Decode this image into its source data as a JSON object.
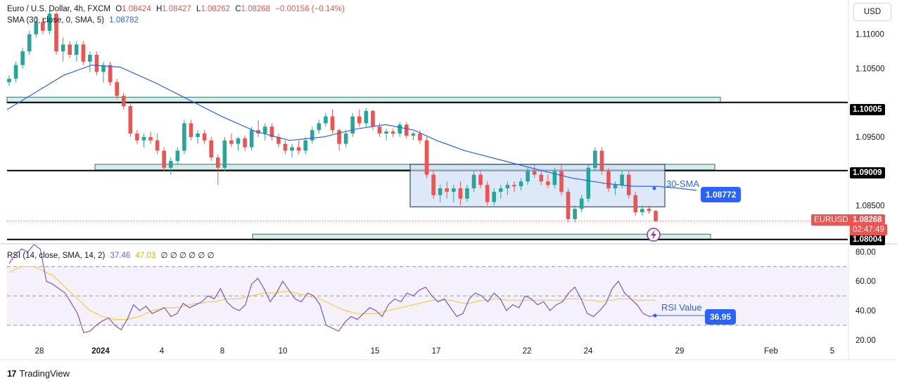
{
  "legend": {
    "symbol": "Euro / U.S. Dollar, 4h, FXCM",
    "o_label": "O",
    "o": "1.08424",
    "h_label": "H",
    "h": "1.08427",
    "l_label": "L",
    "l": "1.08262",
    "c_label": "C",
    "c": "1.08268",
    "change": "−0.00156 (−0.14%)",
    "sma_label": "SMA (30, close, 0, SMA, 5)",
    "sma_value": "1.08782",
    "rsi_label": "RSI (14, close, SMA, 14, 2)",
    "rsi_value": "37.46",
    "rsi_sma_value": "47.03",
    "rsi_extra": "∅ ∅ ∅ ∅ ∅ ∅"
  },
  "currency_button": "USD",
  "branding": "TradingView",
  "annotations": {
    "sma_text": "30-SMA",
    "sma_callout": "1.08772",
    "rsi_text": "RSI Value",
    "rsi_callout": "36.95"
  },
  "price_axis": {
    "ticks": [
      "1.11000",
      "1.10500",
      "1.09500",
      "1.08500"
    ],
    "badges": [
      {
        "label": "1.10005",
        "color": "#000000"
      },
      {
        "label": "1.09009",
        "color": "#000000"
      },
      {
        "label": "1.08004",
        "color": "#000000"
      }
    ],
    "last_price_symbol": "EURUSD",
    "last_price": "1.08268",
    "countdown": "02:47:49",
    "last_color": "#ef5350"
  },
  "rsi_axis": {
    "ticks": [
      "80.00",
      "60.00",
      "40.00",
      "20.00"
    ]
  },
  "time_axis": [
    "28",
    "2024",
    "4",
    "8",
    "10",
    "15",
    "17",
    "22",
    "24",
    "29",
    "Feb",
    "5"
  ],
  "colors": {
    "up": "#26a69a",
    "down": "#ef5350",
    "sma": "#2962ff",
    "rsi": "#7e57c2",
    "rsi_sma": "#f4d03f",
    "zone_fill": "#cfe0f7",
    "level_line": "#000000"
  },
  "chart_data": [
    {
      "type": "candlestick",
      "title": "Euro / U.S. Dollar, 4h, FXCM",
      "xlabel": "",
      "ylabel": "",
      "x_range": [
        "Dec 27",
        "Feb 5"
      ],
      "ylim": [
        1.08,
        1.114
      ],
      "horizontal_levels": [
        1.10005,
        1.09009,
        1.08004
      ],
      "support_resistance_zones": [
        {
          "from": 1.0997,
          "to": 1.1004
        },
        {
          "from": 1.0898,
          "to": 1.0906
        },
        {
          "from": 1.0797,
          "to": 1.0804
        }
      ],
      "consolidation_box": {
        "low": 1.0848,
        "high": 1.091
      },
      "series": [
        {
          "name": "EURUSD",
          "ohlc": [
            [
              1.103,
              1.104,
              1.1025,
              1.1035
            ],
            [
              1.1035,
              1.106,
              1.103,
              1.1055
            ],
            [
              1.1055,
              1.108,
              1.105,
              1.1075
            ],
            [
              1.1075,
              1.1105,
              1.107,
              1.11
            ],
            [
              1.11,
              1.1125,
              1.1095,
              1.1118
            ],
            [
              1.1118,
              1.1125,
              1.11,
              1.1105
            ],
            [
              1.1105,
              1.1135,
              1.11,
              1.113
            ],
            [
              1.113,
              1.1132,
              1.107,
              1.1075
            ],
            [
              1.1075,
              1.1095,
              1.106,
              1.1085
            ],
            [
              1.1085,
              1.109,
              1.1065,
              1.107
            ],
            [
              1.107,
              1.109,
              1.106,
              1.1085
            ],
            [
              1.1085,
              1.109,
              1.1055,
              1.106
            ],
            [
              1.106,
              1.1075,
              1.1045,
              1.107
            ],
            [
              1.107,
              1.1075,
              1.104,
              1.1045
            ],
            [
              1.1045,
              1.106,
              1.103,
              1.1055
            ],
            [
              1.1055,
              1.106,
              1.1025,
              1.103
            ],
            [
              1.103,
              1.1035,
              1.1005,
              1.101
            ],
            [
              1.101,
              1.1015,
              1.099,
              1.0995
            ],
            [
              1.0995,
              1.1,
              1.095,
              1.0955
            ],
            [
              1.0955,
              1.096,
              1.094,
              1.0945
            ],
            [
              1.0945,
              1.0955,
              1.0935,
              1.095
            ],
            [
              1.095,
              1.0958,
              1.094,
              1.0945
            ],
            [
              1.0945,
              1.0955,
              1.0925,
              1.093
            ],
            [
              1.093,
              1.0935,
              1.09,
              1.0905
            ],
            [
              1.0905,
              1.092,
              1.0895,
              1.0915
            ],
            [
              1.0915,
              1.0935,
              1.091,
              1.093
            ],
            [
              1.093,
              1.0975,
              1.0925,
              1.097
            ],
            [
              1.097,
              1.0975,
              1.0945,
              1.095
            ],
            [
              1.095,
              1.096,
              1.094,
              1.0955
            ],
            [
              1.0955,
              1.096,
              1.094,
              1.0945
            ],
            [
              1.0945,
              1.095,
              1.0915,
              1.092
            ],
            [
              1.092,
              1.0925,
              1.088,
              1.0905
            ],
            [
              1.0905,
              1.095,
              1.09,
              1.0945
            ],
            [
              1.0945,
              1.0955,
              1.0935,
              1.094
            ],
            [
              1.094,
              1.095,
              1.093,
              1.0948
            ],
            [
              1.0948,
              1.0952,
              1.093,
              1.0935
            ],
            [
              1.0935,
              1.0965,
              1.093,
              1.096
            ],
            [
              1.096,
              1.0975,
              1.095,
              1.0955
            ],
            [
              1.0955,
              1.097,
              1.0945,
              1.0965
            ],
            [
              1.0965,
              1.097,
              1.0945,
              1.095
            ],
            [
              1.095,
              1.0955,
              1.0935,
              1.094
            ],
            [
              1.094,
              1.0945,
              1.0925,
              1.093
            ],
            [
              1.093,
              1.094,
              1.092,
              1.0935
            ],
            [
              1.0935,
              1.0945,
              1.0925,
              1.093
            ],
            [
              1.093,
              1.095,
              1.0925,
              1.0945
            ],
            [
              1.0945,
              1.0965,
              1.094,
              1.096
            ],
            [
              1.096,
              1.0975,
              1.0955,
              1.097
            ],
            [
              1.097,
              1.0985,
              1.0965,
              1.098
            ],
            [
              1.098,
              1.099,
              1.0955,
              1.096
            ],
            [
              1.096,
              1.0962,
              1.093,
              1.094
            ],
            [
              1.094,
              1.096,
              1.0935,
              1.0955
            ],
            [
              1.0955,
              1.0985,
              1.095,
              1.098
            ],
            [
              1.098,
              1.099,
              1.0965,
              1.097
            ],
            [
              1.097,
              1.0992,
              1.0965,
              1.0988
            ],
            [
              1.0988,
              1.099,
              1.096,
              1.0965
            ],
            [
              1.0965,
              1.097,
              1.095,
              1.0955
            ],
            [
              1.0955,
              1.0962,
              1.0945,
              1.0958
            ],
            [
              1.0958,
              1.0962,
              1.095,
              1.0955
            ],
            [
              1.0955,
              1.0972,
              1.095,
              1.0968
            ],
            [
              1.0968,
              1.0972,
              1.0948,
              1.0952
            ],
            [
              1.0952,
              1.0958,
              1.0945,
              1.0955
            ],
            [
              1.0955,
              1.096,
              1.094,
              1.0945
            ],
            [
              1.0945,
              1.095,
              1.089,
              1.0895
            ],
            [
              1.0895,
              1.09,
              1.086,
              1.0865
            ],
            [
              1.0865,
              1.088,
              1.0855,
              1.0875
            ],
            [
              1.0875,
              1.0885,
              1.086,
              1.087
            ],
            [
              1.087,
              1.088,
              1.0855,
              1.0875
            ],
            [
              1.0875,
              1.0885,
              1.085,
              1.086
            ],
            [
              1.086,
              1.088,
              1.0855,
              1.0875
            ],
            [
              1.0875,
              1.09,
              1.087,
              1.0895
            ],
            [
              1.0895,
              1.09,
              1.0875,
              1.088
            ],
            [
              1.088,
              1.0885,
              1.085,
              1.0855
            ],
            [
              1.0855,
              1.0875,
              1.085,
              1.087
            ],
            [
              1.087,
              1.088,
              1.086,
              1.0875
            ],
            [
              1.0875,
              1.0885,
              1.0865,
              1.088
            ],
            [
              1.088,
              1.0885,
              1.087,
              1.0878
            ],
            [
              1.0878,
              1.089,
              1.0872,
              1.0885
            ],
            [
              1.0885,
              1.0905,
              1.088,
              1.09
            ],
            [
              1.09,
              1.091,
              1.089,
              1.0895
            ],
            [
              1.0895,
              1.09,
              1.088,
              1.0885
            ],
            [
              1.0885,
              1.0895,
              1.0875,
              1.088
            ],
            [
              1.088,
              1.0905,
              1.0875,
              1.09
            ],
            [
              1.09,
              1.091,
              1.0865,
              1.087
            ],
            [
              1.087,
              1.0875,
              1.0825,
              1.083
            ],
            [
              1.083,
              1.085,
              1.0825,
              1.0845
            ],
            [
              1.0845,
              1.0865,
              1.084,
              1.086
            ],
            [
              1.086,
              1.091,
              1.0855,
              1.0905
            ],
            [
              1.0905,
              1.0935,
              1.09,
              1.093
            ],
            [
              1.093,
              1.0935,
              1.0895,
              1.09
            ],
            [
              1.09,
              1.0905,
              1.087,
              1.0875
            ],
            [
              1.0875,
              1.0885,
              1.0865,
              1.088
            ],
            [
              1.088,
              1.09,
              1.0875,
              1.0895
            ],
            [
              1.0895,
              1.09,
              1.086,
              1.0865
            ],
            [
              1.0865,
              1.087,
              1.0835,
              1.084
            ],
            [
              1.084,
              1.085,
              1.0835,
              1.0845
            ],
            [
              1.0845,
              1.085,
              1.0838,
              1.0842
            ],
            [
              1.0842,
              1.0843,
              1.0826,
              1.0827
            ]
          ]
        },
        {
          "name": "SMA (30, close, 0, SMA, 5)",
          "points": [
            [
              0,
              1.099
            ],
            [
              10,
              1.1015
            ],
            [
              20,
              1.104
            ],
            [
              30,
              1.1055
            ],
            [
              40,
              1.1052
            ],
            [
              52,
              1.103
            ],
            [
              64,
              1.1005
            ],
            [
              76,
              1.098
            ],
            [
              88,
              1.0958
            ],
            [
              100,
              1.0945
            ],
            [
              112,
              1.095
            ],
            [
              124,
              1.0962
            ],
            [
              134,
              1.0968
            ],
            [
              144,
              1.096
            ],
            [
              152,
              1.0945
            ],
            [
              162,
              1.093
            ],
            [
              176,
              1.0915
            ],
            [
              190,
              1.09
            ],
            [
              200,
              1.089
            ],
            [
              212,
              1.0882
            ],
            [
              222,
              1.0878
            ],
            [
              230,
              1.0878
            ],
            [
              238,
              1.0875
            ],
            [
              244,
              1.0872
            ]
          ]
        }
      ]
    },
    {
      "type": "line",
      "title": "RSI (14, close, SMA, 14, 2)",
      "xlabel": "",
      "ylabel": "",
      "ylim": [
        20,
        85
      ],
      "bands": [
        30,
        50,
        70
      ],
      "series": [
        {
          "name": "RSI",
          "values": [
            72,
            78,
            82,
            80,
            85,
            82,
            60,
            58,
            55,
            52,
            45,
            38,
            25,
            26,
            30,
            33,
            35,
            30,
            27,
            34,
            44,
            40,
            43,
            38,
            40,
            42,
            36,
            38,
            45,
            42,
            44,
            46,
            50,
            48,
            55,
            46,
            42,
            40,
            44,
            58,
            62,
            55,
            46,
            52,
            60,
            54,
            48,
            46,
            52,
            50,
            44,
            30,
            28,
            26,
            32,
            36,
            34,
            38,
            42,
            40,
            36,
            44,
            48,
            46,
            52,
            50,
            54,
            56,
            50,
            46,
            48,
            42,
            36,
            38,
            48,
            52,
            50,
            46,
            52,
            48,
            40,
            44,
            42,
            50,
            48,
            44,
            46,
            40,
            44,
            46,
            52,
            56,
            48,
            38,
            36,
            40,
            45,
            55,
            60,
            52,
            48,
            44,
            38,
            36,
            37
          ]
        },
        {
          "name": "RSI SMA",
          "values": [
            66,
            68,
            70,
            70,
            70,
            68,
            66,
            64,
            60,
            56,
            52,
            48,
            44,
            40,
            38,
            36,
            35,
            34,
            34,
            34,
            35,
            36,
            38,
            40,
            41,
            42,
            42,
            42,
            43,
            44,
            45,
            45,
            46,
            46,
            47,
            48,
            48,
            48,
            49,
            50,
            51,
            52,
            52,
            52,
            53,
            53,
            52,
            51,
            50,
            49,
            48,
            46,
            44,
            42,
            40,
            39,
            38,
            38,
            38,
            38,
            39,
            40,
            41,
            42,
            43,
            44,
            45,
            46,
            47,
            47,
            47,
            47,
            46,
            45,
            45,
            46,
            47,
            47,
            48,
            48,
            47,
            47,
            47,
            47,
            47,
            47,
            47,
            47,
            47,
            47,
            48,
            48,
            48,
            47,
            47,
            46,
            47,
            47,
            48,
            48,
            48,
            47,
            47,
            47,
            47
          ]
        }
      ]
    }
  ]
}
